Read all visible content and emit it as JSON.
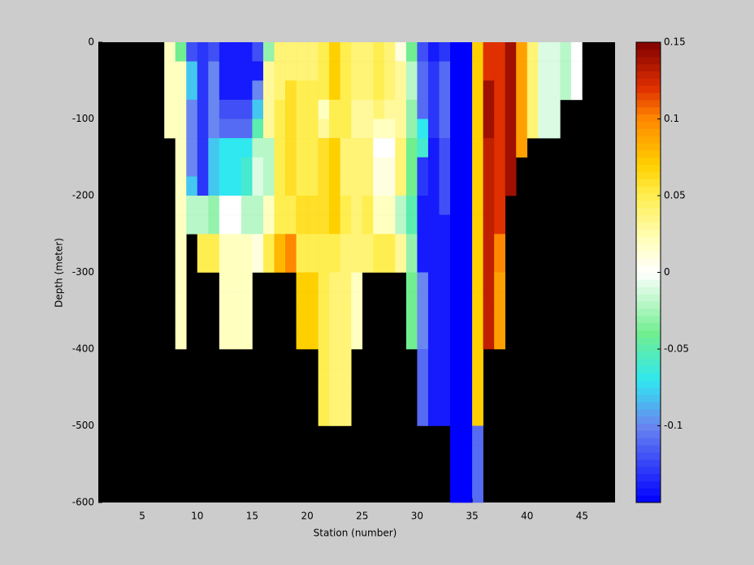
{
  "chart_data": {
    "type": "heatmap",
    "xlabel": "Station (number)",
    "ylabel": "Depth (meter)",
    "xlim": [
      1,
      48
    ],
    "xticks": [
      5,
      10,
      15,
      20,
      25,
      30,
      35,
      40,
      45
    ],
    "ylim": [
      -600,
      0
    ],
    "yticks": [
      -600,
      -500,
      -400,
      -300,
      -200,
      -100,
      0
    ],
    "clim": [
      -0.15,
      0.15
    ],
    "cticks": [
      -0.1,
      -0.05,
      0,
      0.05,
      0.1,
      0.15
    ],
    "background_color": "#000000",
    "colormap": [
      {
        "value": -0.15,
        "color": "#0000ff"
      },
      {
        "value": -0.1,
        "color": "#6a86f0"
      },
      {
        "value": -0.07,
        "color": "#30e8f0"
      },
      {
        "value": -0.04,
        "color": "#70ee90"
      },
      {
        "value": 0,
        "color": "#ffffff"
      },
      {
        "value": 0.02,
        "color": "#ffffc0"
      },
      {
        "value": 0.05,
        "color": "#ffee50"
      },
      {
        "value": 0.07,
        "color": "#ffd000"
      },
      {
        "value": 0.1,
        "color": "#ff8800"
      },
      {
        "value": 0.12,
        "color": "#e03000"
      },
      {
        "value": 0.15,
        "color": "#800000"
      }
    ],
    "x": [
      7,
      8,
      9,
      10,
      11,
      12,
      13,
      14,
      15,
      16,
      17,
      18,
      19,
      20,
      21,
      22,
      23,
      24,
      25,
      26,
      27,
      28,
      29,
      30,
      31,
      32,
      33,
      34,
      35,
      36,
      37,
      38,
      39,
      40,
      41,
      42,
      43,
      44
    ],
    "y": [
      0,
      -25,
      -50,
      -75,
      -100,
      -125,
      -150,
      -175,
      -200,
      -225,
      -250,
      -275,
      -300,
      -325,
      -350,
      -375,
      -400,
      -425,
      -450,
      -475,
      -500,
      -525,
      -550,
      -575
    ],
    "values": [
      [
        0.02,
        0.02,
        0.02,
        0.02,
        0.02,
        null,
        null,
        null,
        null,
        null,
        null,
        null,
        null,
        null,
        null,
        null,
        null,
        null,
        null,
        null,
        null,
        null,
        null,
        null
      ],
      [
        -0.04,
        0.02,
        0.02,
        0.02,
        0.02,
        0.02,
        0.02,
        0.02,
        0.02,
        0.02,
        0.02,
        0.02,
        0.02,
        0.02,
        0.02,
        0.02,
        null,
        null,
        null,
        null,
        null,
        null,
        null,
        null
      ],
      [
        -0.12,
        -0.08,
        -0.08,
        -0.1,
        -0.1,
        -0.1,
        -0.1,
        -0.08,
        -0.02,
        -0.02,
        null,
        null,
        null,
        null,
        null,
        null,
        null,
        null,
        null,
        null,
        null,
        null,
        null,
        null
      ],
      [
        -0.13,
        -0.13,
        -0.13,
        -0.13,
        -0.13,
        -0.13,
        -0.13,
        -0.13,
        -0.02,
        -0.02,
        0.05,
        0.05,
        null,
        null,
        null,
        null,
        null,
        null,
        null,
        null,
        null,
        null,
        null,
        null
      ],
      [
        -0.12,
        -0.1,
        -0.1,
        -0.1,
        -0.1,
        -0.08,
        -0.08,
        -0.08,
        -0.03,
        -0.03,
        0.05,
        0.05,
        null,
        null,
        null,
        null,
        null,
        null,
        null,
        null,
        null,
        null,
        null,
        null
      ],
      [
        -0.14,
        -0.14,
        -0.14,
        -0.12,
        -0.11,
        -0.07,
        -0.07,
        -0.07,
        0,
        0,
        0.02,
        0.02,
        0.02,
        0.02,
        0.02,
        0.02,
        null,
        null,
        null,
        null,
        null,
        null,
        null,
        null
      ],
      [
        -0.14,
        -0.14,
        -0.14,
        -0.12,
        -0.11,
        -0.07,
        -0.07,
        -0.07,
        0,
        0,
        0.02,
        0.02,
        0.02,
        0.02,
        0.02,
        0.02,
        null,
        null,
        null,
        null,
        null,
        null,
        null,
        null
      ],
      [
        -0.14,
        -0.14,
        -0.14,
        -0.12,
        -0.11,
        -0.07,
        -0.06,
        -0.06,
        -0.02,
        -0.02,
        0.02,
        0.02,
        0.02,
        0.02,
        0.02,
        0.02,
        null,
        null,
        null,
        null,
        null,
        null,
        null,
        null
      ],
      [
        -0.12,
        -0.14,
        -0.1,
        -0.08,
        -0.05,
        -0.02,
        -0.01,
        -0.01,
        -0.02,
        -0.02,
        0.01,
        0.01,
        null,
        null,
        null,
        null,
        null,
        null,
        null,
        null,
        null,
        null,
        null,
        null
      ],
      [
        -0.03,
        0.03,
        0.03,
        0.03,
        0.03,
        -0.02,
        -0.02,
        -0.02,
        0.02,
        0.02,
        0.05,
        0.05,
        null,
        null,
        null,
        null,
        null,
        null,
        null,
        null,
        null,
        null,
        null,
        null
      ],
      [
        0.04,
        0.04,
        0.04,
        0.05,
        0.05,
        0.05,
        0.05,
        0.05,
        0.05,
        0.05,
        0.08,
        0.08,
        null,
        null,
        null,
        null,
        null,
        null,
        null,
        null,
        null,
        null,
        null,
        null
      ],
      [
        0.04,
        0.04,
        0.06,
        0.06,
        0.06,
        0.06,
        0.06,
        0.06,
        0.05,
        0.05,
        0.1,
        0.1,
        null,
        null,
        null,
        null,
        null,
        null,
        null,
        null,
        null,
        null,
        null,
        null
      ],
      [
        0.04,
        0.04,
        0.05,
        0.05,
        0.05,
        0.05,
        0.05,
        0.05,
        0.06,
        0.06,
        0.05,
        0.05,
        0.07,
        0.07,
        0.07,
        0.07,
        null,
        null,
        null,
        null,
        null,
        null,
        null,
        null
      ],
      [
        0.04,
        0.04,
        0.05,
        0.05,
        0.05,
        0.05,
        0.05,
        0.05,
        0.06,
        0.06,
        0.05,
        0.05,
        0.07,
        0.07,
        0.07,
        0.07,
        null,
        null,
        null,
        null,
        null,
        null,
        null,
        null
      ],
      [
        0.05,
        0.05,
        0.05,
        0.02,
        0.03,
        0.06,
        0.06,
        0.06,
        0.06,
        0.06,
        0.05,
        0.05,
        0.05,
        0.05,
        0.05,
        0.05,
        0.05,
        0.05,
        0.05,
        0.05,
        null,
        null,
        null,
        null
      ],
      [
        0.07,
        0.07,
        0.07,
        0.05,
        0.05,
        0.07,
        0.07,
        0.07,
        0.07,
        0.07,
        0.05,
        0.05,
        0.04,
        0.04,
        0.04,
        0.04,
        0.04,
        0.04,
        0.04,
        0.04,
        null,
        null,
        null,
        null
      ],
      [
        0.05,
        0.05,
        0.05,
        0.05,
        0.05,
        0.04,
        0.04,
        0.04,
        0.05,
        0.05,
        0.04,
        0.04,
        0.04,
        0.04,
        0.04,
        0.04,
        0.04,
        0.04,
        0.04,
        0.04,
        null,
        null,
        null,
        null
      ],
      [
        0.04,
        0.04,
        0.04,
        0.03,
        0.03,
        0.04,
        0.04,
        0.04,
        0.04,
        0.04,
        0.04,
        0.04,
        0.02,
        0.02,
        0.02,
        0.02,
        null,
        null,
        null,
        null,
        null,
        null,
        null,
        null
      ],
      [
        0.04,
        0.04,
        0.04,
        0.03,
        0.03,
        0.04,
        0.04,
        0.04,
        0.05,
        0.05,
        0.04,
        0.04,
        null,
        null,
        null,
        null,
        null,
        null,
        null,
        null,
        null,
        null,
        null,
        null
      ],
      [
        0.05,
        0.05,
        0.05,
        0.04,
        0.02,
        0,
        0.01,
        0.01,
        0.02,
        0.02,
        0.05,
        0.05,
        null,
        null,
        null,
        null,
        null,
        null,
        null,
        null,
        null,
        null,
        null,
        null
      ],
      [
        0.04,
        0.04,
        0.04,
        0.03,
        0.02,
        0,
        0.01,
        0.01,
        0.02,
        0.02,
        0.05,
        0.05,
        null,
        null,
        null,
        null,
        null,
        null,
        null,
        null,
        null,
        null,
        null,
        null
      ],
      [
        0.01,
        0.03,
        0.03,
        0.03,
        0.03,
        0.04,
        0.04,
        0.04,
        -0.02,
        -0.02,
        0.03,
        0.03,
        null,
        null,
        null,
        null,
        null,
        null,
        null,
        null,
        null,
        null,
        null,
        null
      ],
      [
        -0.04,
        -0.02,
        -0.02,
        -0.03,
        -0.03,
        -0.04,
        -0.04,
        -0.04,
        -0.05,
        -0.05,
        -0.03,
        -0.03,
        -0.04,
        -0.04,
        -0.04,
        -0.04,
        null,
        null,
        null,
        null,
        null,
        null,
        null,
        null
      ],
      [
        -0.12,
        -0.11,
        -0.11,
        -0.11,
        -0.07,
        -0.06,
        -0.13,
        -0.13,
        -0.14,
        -0.14,
        -0.14,
        -0.14,
        -0.1,
        -0.1,
        -0.1,
        -0.1,
        -0.11,
        -0.11,
        -0.11,
        -0.11,
        null,
        null,
        null,
        null
      ],
      [
        -0.14,
        -0.13,
        -0.13,
        -0.13,
        -0.13,
        -0.14,
        -0.14,
        -0.14,
        -0.14,
        -0.14,
        -0.14,
        -0.14,
        -0.14,
        -0.14,
        -0.14,
        -0.14,
        -0.14,
        -0.14,
        -0.14,
        -0.14,
        null,
        null,
        null,
        null
      ],
      [
        -0.13,
        -0.11,
        -0.11,
        -0.11,
        -0.11,
        -0.12,
        -0.12,
        -0.12,
        -0.12,
        -0.14,
        -0.14,
        -0.14,
        -0.14,
        -0.14,
        -0.14,
        -0.14,
        -0.14,
        -0.14,
        -0.14,
        -0.14,
        null,
        null,
        null,
        null
      ],
      [
        -0.15,
        -0.15,
        -0.15,
        -0.15,
        -0.15,
        -0.15,
        -0.15,
        -0.15,
        -0.15,
        -0.15,
        -0.15,
        -0.15,
        -0.15,
        -0.15,
        -0.15,
        -0.15,
        -0.15,
        -0.15,
        -0.15,
        -0.15,
        -0.15,
        -0.15,
        -0.15,
        -0.15
      ],
      [
        -0.15,
        -0.15,
        -0.15,
        -0.15,
        -0.15,
        -0.15,
        -0.15,
        -0.15,
        -0.15,
        -0.15,
        -0.15,
        -0.15,
        -0.15,
        -0.15,
        -0.15,
        -0.15,
        -0.15,
        -0.15,
        -0.15,
        -0.15,
        -0.15,
        -0.15,
        -0.15,
        -0.15
      ],
      [
        0.07,
        0.07,
        0.07,
        0.07,
        0.07,
        0.07,
        0.07,
        0.07,
        0.07,
        0.07,
        0.07,
        0.07,
        0.07,
        0.07,
        0.07,
        0.07,
        0.07,
        0.07,
        0.07,
        0.07,
        -0.11,
        -0.11,
        -0.11,
        -0.11
      ],
      [
        0.12,
        0.12,
        0.14,
        0.14,
        0.14,
        0.13,
        0.13,
        0.13,
        0.13,
        0.13,
        0.13,
        0.13,
        0.13,
        0.13,
        0.13,
        0.13,
        null,
        null,
        null,
        null,
        null,
        null,
        null,
        null
      ],
      [
        0.12,
        0.12,
        0.12,
        0.12,
        0.12,
        0.12,
        0.12,
        0.12,
        0.12,
        0.12,
        0.1,
        0.1,
        0.09,
        0.09,
        0.09,
        0.09,
        null,
        null,
        null,
        null,
        null,
        null,
        null,
        null
      ],
      [
        0.14,
        0.14,
        0.14,
        0.14,
        0.14,
        0.14,
        0.14,
        0.14,
        null,
        null,
        null,
        null,
        null,
        null,
        null,
        null,
        null,
        null,
        null,
        null,
        null,
        null,
        null,
        null
      ],
      [
        0.09,
        0.09,
        0.09,
        0.09,
        0.09,
        0.09,
        null,
        null,
        null,
        null,
        null,
        null,
        null,
        null,
        null,
        null,
        null,
        null,
        null,
        null,
        null,
        null,
        null,
        null
      ],
      [
        0.04,
        0.04,
        0.04,
        0.04,
        0.04,
        null,
        null,
        null,
        null,
        null,
        null,
        null,
        null,
        null,
        null,
        null,
        null,
        null,
        null,
        null,
        null,
        null,
        null,
        null
      ],
      [
        -0.01,
        -0.01,
        -0.01,
        -0.01,
        -0.01,
        null,
        null,
        null,
        null,
        null,
        null,
        null,
        null,
        null,
        null,
        null,
        null,
        null,
        null,
        null,
        null,
        null,
        null,
        null
      ],
      [
        -0.01,
        -0.01,
        -0.01,
        -0.01,
        -0.01,
        null,
        null,
        null,
        null,
        null,
        null,
        null,
        null,
        null,
        null,
        null,
        null,
        null,
        null,
        null,
        null,
        null,
        null,
        null
      ],
      [
        -0.02,
        -0.02,
        -0.02,
        null,
        null,
        null,
        null,
        null,
        null,
        null,
        null,
        null,
        null,
        null,
        null,
        null,
        null,
        null,
        null,
        null,
        null,
        null,
        null,
        null
      ],
      [
        0,
        0,
        0,
        null,
        null,
        null,
        null,
        null,
        null,
        null,
        null,
        null,
        null,
        null,
        null,
        null,
        null,
        null,
        null,
        null,
        null,
        null,
        null,
        null
      ]
    ]
  }
}
